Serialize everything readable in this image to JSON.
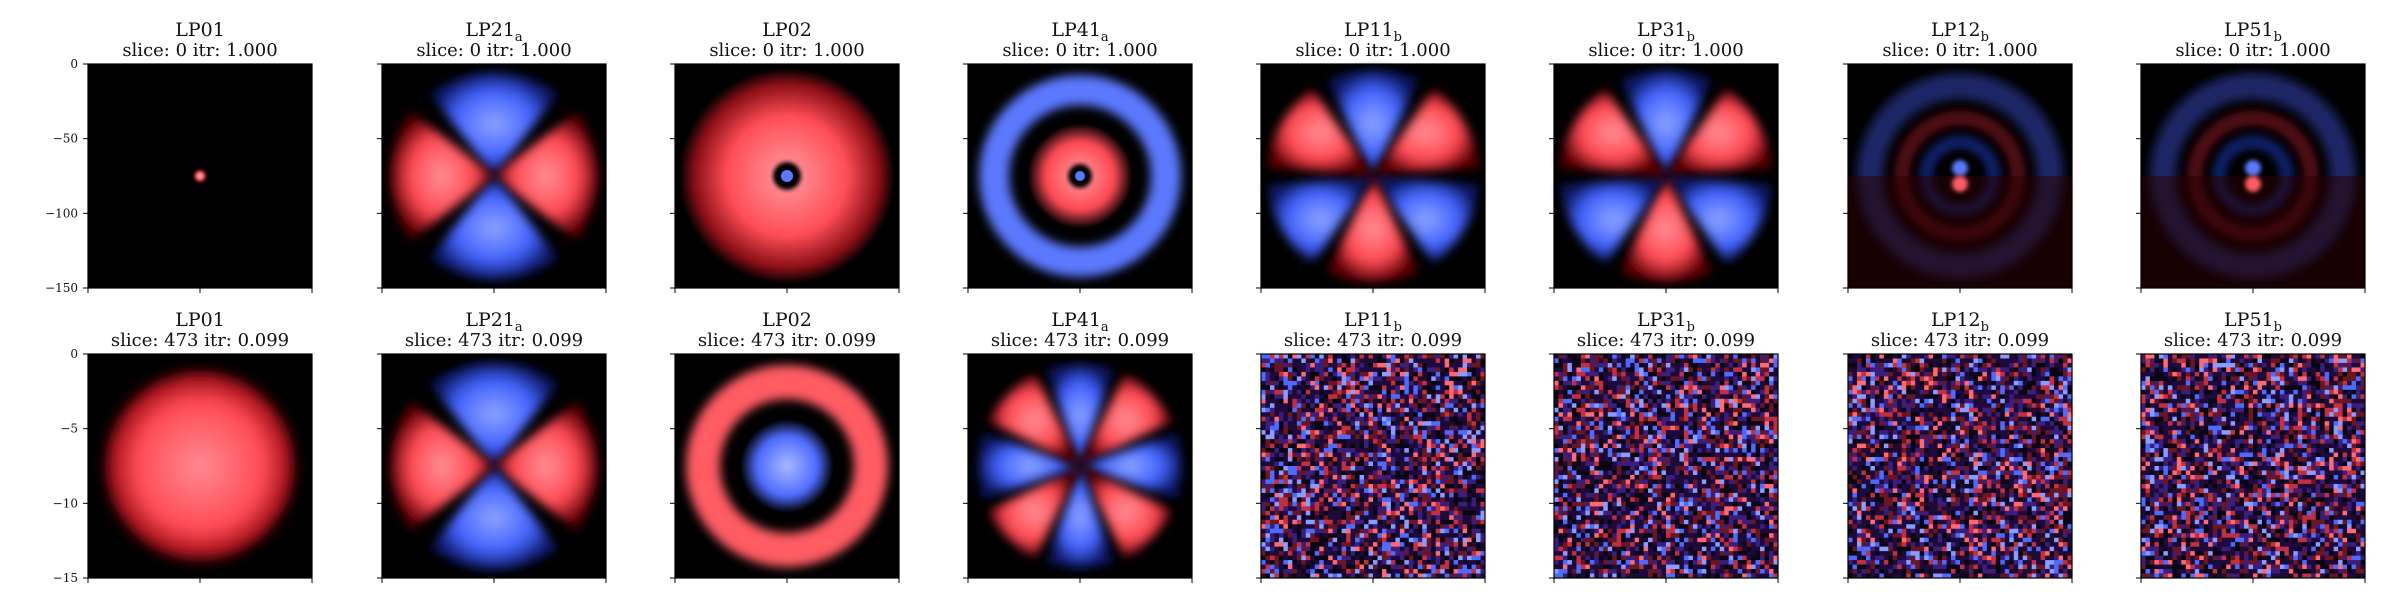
{
  "figure": {
    "rows": [
      {
        "slice_line": "slice: 0  itr: 1.000",
        "y_ticks": [
          "0",
          "−50",
          "−100",
          "−150"
        ],
        "panels": [
          {
            "title": "LP01",
            "subscript": "",
            "pattern": "lp01_small"
          },
          {
            "title": "LP21",
            "subscript": "a",
            "pattern": "lobes4"
          },
          {
            "title": "LP02",
            "subscript": "",
            "pattern": "ring_red_center_blue"
          },
          {
            "title": "LP41",
            "subscript": "a",
            "pattern": "rings_blue_red"
          },
          {
            "title": "LP11",
            "subscript": "b",
            "pattern": "lobes6"
          },
          {
            "title": "LP31",
            "subscript": "b",
            "pattern": "lobes6"
          },
          {
            "title": "LP12",
            "subscript": "b",
            "pattern": "faint_ring_dipole"
          },
          {
            "title": "LP51",
            "subscript": "b",
            "pattern": "faint_ring_dipole"
          }
        ]
      },
      {
        "slice_line": "slice: 473  itr: 0.099",
        "y_ticks": [
          "0",
          "−5",
          "−10",
          "−15"
        ],
        "panels": [
          {
            "title": "LP01",
            "subscript": "",
            "pattern": "gauss_large"
          },
          {
            "title": "LP21",
            "subscript": "a",
            "pattern": "lobes4"
          },
          {
            "title": "LP02",
            "subscript": "",
            "pattern": "red_ring_blue_center"
          },
          {
            "title": "LP41",
            "subscript": "a",
            "pattern": "lobes8"
          },
          {
            "title": "LP11",
            "subscript": "b",
            "pattern": "noise"
          },
          {
            "title": "LP31",
            "subscript": "b",
            "pattern": "noise"
          },
          {
            "title": "LP12",
            "subscript": "b",
            "pattern": "noise"
          },
          {
            "title": "LP51",
            "subscript": "b",
            "pattern": "noise"
          }
        ]
      }
    ],
    "colors": {
      "background": "#000000",
      "positive": "#ff5b63",
      "negative": "#5b78ff"
    }
  }
}
